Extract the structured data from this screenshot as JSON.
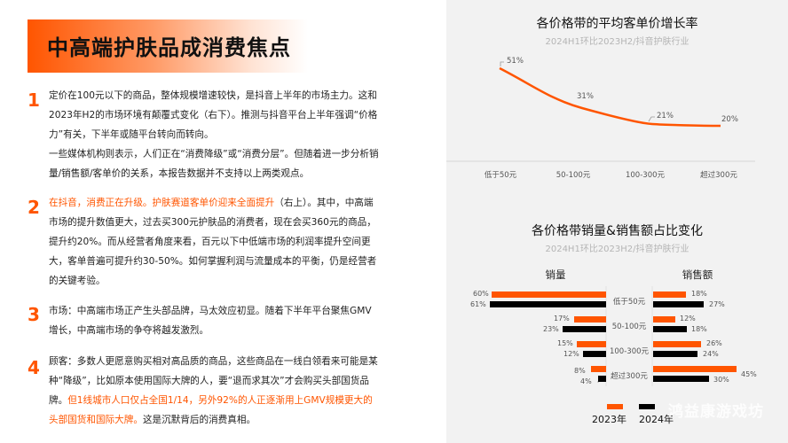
{
  "title": "中高端护肤品成消费焦点",
  "points": [
    {
      "num": "1",
      "segments": [
        {
          "text": "定价在100元以下的商品，整体规模增速较快，是抖音上半年的市场主力。这和2023年H2的市场环境有颠覆式变化（右下）。推测与抖音平台上半年强调“价格力”有关，下半年或随平台转向而转向。",
          "hl": false
        },
        {
          "text": "\n一些媒体机构则表示，人们正在“消费降级”或“消费分层”。但随着进一步分析销量/销售额/客单价的关系，本报告数据并不支持以上两类观点。",
          "hl": false
        }
      ]
    },
    {
      "num": "2",
      "segments": [
        {
          "text": "在抖音，消费正在升级。护肤赛道客单价迎来全面提升",
          "hl": true
        },
        {
          "text": "（右上）。其中，中高端市场的提升数值更大，过去买300元护肤品的消费者，现在会买360元的商品，提升约20%。而从经营者角度来看，百元以下中低端市场的利润率提升空间更大，客单普遍可提升约30-50%。如何掌握利润与流量成本的平衡，仍是经营者的关键考验。",
          "hl": false
        }
      ]
    },
    {
      "num": "3",
      "segments": [
        {
          "text": "市场：中高端市场正产生头部品牌，马太效应初显。随着下半年平台聚焦GMV增长，中高端市场的争夺将越发激烈。",
          "hl": false
        }
      ]
    },
    {
      "num": "4",
      "segments": [
        {
          "text": "顾客：多数人更愿意购买相对高品质的商品，这些商品在一线白领看来可能是某种“降级”，比如原本使用国际大牌的人，要“退而求其次”才会购买头部国货品牌。",
          "hl": false
        },
        {
          "text": "但1线城市人口仅占全国1/14，另外92%的人正逐渐用上GMV规模更大的头部国货和国际大牌。",
          "hl": true
        },
        {
          "text": "这是沉默背后的消费真相。",
          "hl": false
        }
      ]
    }
  ],
  "colors": {
    "accent": "#FF5500",
    "series2023": "#FF5500",
    "series2024": "#000000",
    "panel_bg": "#F2F2F2"
  },
  "chart_data": [
    {
      "type": "line",
      "title": "各价格带的平均客单价增长率",
      "subtitle": "2024H1环比2023H2/抖音护肤行业",
      "categories": [
        "低于50元",
        "50-100元",
        "100-300元",
        "超过300元"
      ],
      "series": [
        {
          "name": "客单价增长率",
          "values": [
            51,
            31,
            21,
            20
          ],
          "labels": [
            "51%",
            "31%",
            "21%",
            "20%"
          ],
          "color": "#FF5500"
        }
      ],
      "xlabel": "",
      "ylabel": "",
      "grid": false,
      "ylim": [
        0,
        60
      ]
    },
    {
      "type": "bar",
      "orientation": "horizontal-butterfly",
      "title": "各价格带销量&销售额占比变化",
      "subtitle": "2024H1环比2023H2/抖音护肤行业",
      "panels": [
        "销量",
        "销售额"
      ],
      "categories": [
        "低于50元",
        "50-100元",
        "100-300元",
        "超过300元"
      ],
      "series": [
        {
          "name": "2023年",
          "color": "#FF5500",
          "销量": [
            60,
            17,
            15,
            8
          ],
          "销售额": [
            18,
            12,
            26,
            45
          ]
        },
        {
          "name": "2024年",
          "color": "#000000",
          "销量": [
            61,
            23,
            12,
            4
          ],
          "销售额": [
            27,
            18,
            24,
            30
          ]
        }
      ],
      "legend": [
        "2023年",
        "2024年"
      ],
      "legend_position": "bottom"
    }
  ],
  "line_chart": {
    "title": "各价格带的平均客单价增长率",
    "subtitle": "2024H1环比2023H2/抖音护肤行业",
    "x_labels": [
      "低于50元",
      "50-100元",
      "100-300元",
      "超过300元"
    ],
    "values": [
      "51%",
      "31%",
      "21%",
      "20%"
    ]
  },
  "bar_chart": {
    "title": "各价格带销量&销售额占比变化",
    "subtitle": "2024H1环比2023H2/抖音护肤行业",
    "left_header": "销量",
    "right_header": "销售额",
    "categories": [
      "低于50元",
      "50-100元",
      "100-300元",
      "超过300元"
    ],
    "left_2023": [
      "60%",
      "17%",
      "15%",
      "8%"
    ],
    "left_2024": [
      "61%",
      "23%",
      "12%",
      "4%"
    ],
    "right_2023": [
      "18%",
      "12%",
      "26%",
      "45%"
    ],
    "right_2024": [
      "27%",
      "18%",
      "24%",
      "30%"
    ],
    "legend": [
      "2023年",
      "2024年"
    ]
  },
  "watermark": "鸿益康游戏坊"
}
